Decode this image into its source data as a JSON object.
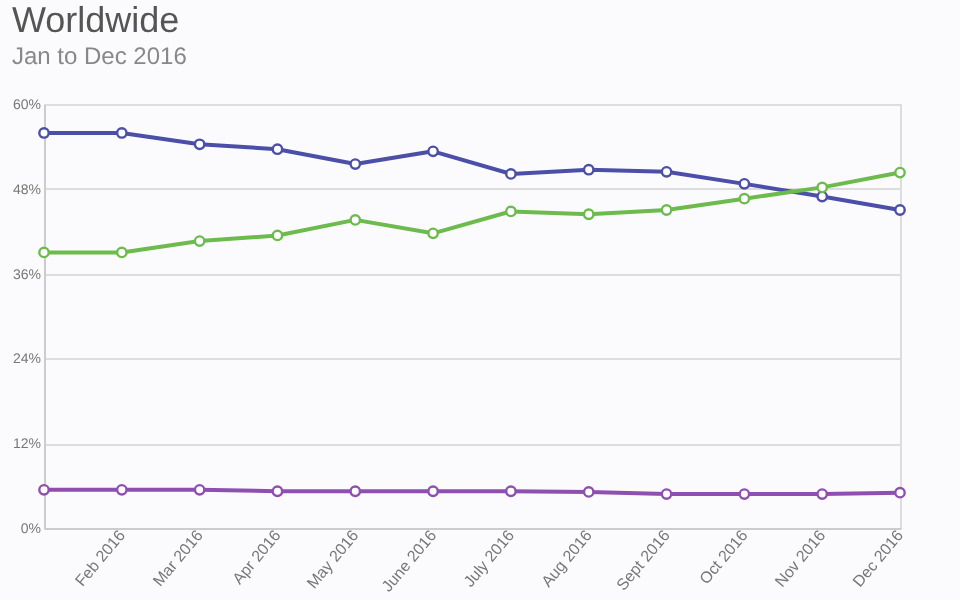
{
  "chart_data": {
    "type": "line",
    "title": "Worldwide",
    "subtitle": "Jan to Dec 2016",
    "categories": [
      null,
      "Feb 2016",
      "Mar 2016",
      "Apr 2016",
      "May 2016",
      "June 2016",
      "July 2016",
      "Aug 2016",
      "Sept 2016",
      "Oct 2016",
      "Nov 2016",
      "Dec 2016"
    ],
    "series": [
      {
        "color": "#4b4fa8",
        "values": [
          55.9,
          55.9,
          54.3,
          53.6,
          51.5,
          53.3,
          50.1,
          50.7,
          50.4,
          48.7,
          46.9,
          45.0
        ]
      },
      {
        "color": "#6dbb4d",
        "values": [
          39.0,
          39.0,
          40.6,
          41.4,
          43.6,
          41.7,
          44.8,
          44.4,
          45.0,
          46.6,
          48.2,
          50.3
        ]
      },
      {
        "color": "#8e4fb0",
        "values": [
          5.4,
          5.4,
          5.4,
          5.2,
          5.2,
          5.2,
          5.2,
          5.1,
          4.8,
          4.8,
          4.8,
          5.0
        ]
      }
    ],
    "ylim": [
      0,
      60
    ],
    "yticks": [
      {
        "value": 0,
        "label": "0%"
      },
      {
        "value": 12,
        "label": "12%"
      },
      {
        "value": 24,
        "label": "24%"
      },
      {
        "value": 36,
        "label": "36%"
      },
      {
        "value": 48,
        "label": "48%"
      },
      {
        "value": 60,
        "label": "60%"
      }
    ],
    "grid": "y",
    "marker": "circle",
    "line_style": "solid"
  }
}
